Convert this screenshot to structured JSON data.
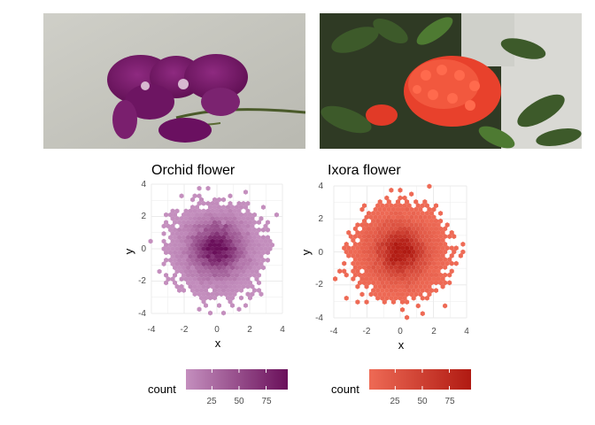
{
  "colors": {
    "orchid_low": "#c48fbe",
    "orchid_high": "#6a0f5a",
    "ixora_low": "#ee6a55",
    "ixora_high": "#b01a12",
    "grid": "#ebebeb"
  },
  "photos": [
    {
      "subject": "orchid-flower-photo"
    },
    {
      "subject": "ixora-flower-photo"
    }
  ],
  "chart_data": [
    {
      "type": "heatmap",
      "geom": "hexbin",
      "title": "Orchid flower",
      "xlabel": "x",
      "ylabel": "y",
      "xlim": [
        -4,
        4
      ],
      "ylim": [
        -4,
        4
      ],
      "xticks": [
        -4,
        -2,
        0,
        2,
        4
      ],
      "yticks": [
        -4,
        -2,
        0,
        2,
        4
      ],
      "xtick_labels": [
        "-4",
        "-2",
        "0",
        "2",
        "4"
      ],
      "ytick_labels": [
        "-4",
        "-2",
        "0",
        "2",
        "4"
      ],
      "distribution": "bivariate standard normal",
      "fill_scale": {
        "title": "count",
        "min": 1,
        "max": 95,
        "breaks": [
          25,
          50,
          75
        ],
        "break_labels": [
          "25",
          "50",
          "75"
        ],
        "low": "#c48fbe",
        "high": "#6a0f5a"
      },
      "grid": true,
      "legend_position": "bottom"
    },
    {
      "type": "heatmap",
      "geom": "hexbin",
      "title": "Ixora flower",
      "xlabel": "x",
      "ylabel": "y",
      "xlim": [
        -4,
        4
      ],
      "ylim": [
        -4,
        4
      ],
      "xticks": [
        -4,
        -2,
        0,
        2,
        4
      ],
      "yticks": [
        -4,
        -2,
        0,
        2,
        4
      ],
      "xtick_labels": [
        "-4",
        "-2",
        "0",
        "2",
        "4"
      ],
      "ytick_labels": [
        "-4",
        "-2",
        "0",
        "2",
        "4"
      ],
      "distribution": "bivariate standard normal",
      "fill_scale": {
        "title": "count",
        "min": 1,
        "max": 95,
        "breaks": [
          25,
          50,
          75
        ],
        "break_labels": [
          "25",
          "50",
          "75"
        ],
        "low": "#ee6a55",
        "high": "#b01a12"
      },
      "grid": true,
      "legend_position": "bottom"
    }
  ]
}
